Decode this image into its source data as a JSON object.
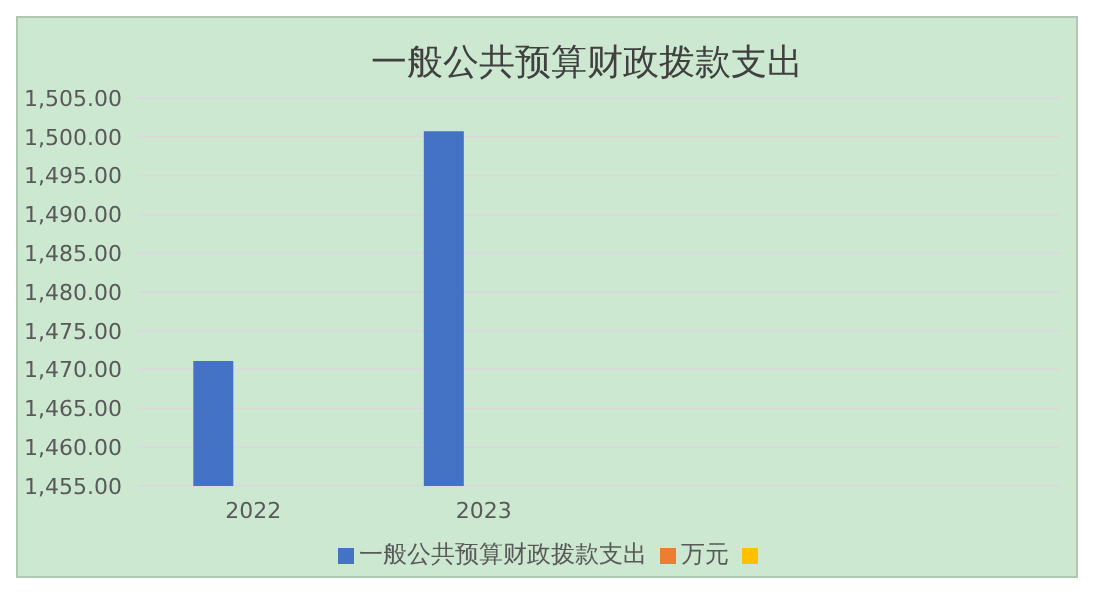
{
  "chart_data": {
    "type": "bar",
    "title": "一般公共预算财政拨款支出",
    "categories": [
      "2022",
      "2023",
      null,
      null
    ],
    "series": [
      {
        "name": "一般公共预算财政拨款支出",
        "color": "#4472c4",
        "values": [
          1471.1,
          1500.7,
          null,
          null
        ]
      },
      {
        "name": "万元",
        "color": "#ed7d31",
        "values": [
          null,
          null,
          null,
          null
        ]
      },
      {
        "color": "#ffc000",
        "values": [
          null,
          null,
          null,
          null
        ]
      }
    ],
    "ylim": [
      1455,
      1505
    ],
    "yticks": [
      {
        "value": 1455,
        "label": "1,455.00"
      },
      {
        "value": 1460,
        "label": "1,460.00"
      },
      {
        "value": 1465,
        "label": "1,465.00"
      },
      {
        "value": 1470,
        "label": "1,470.00"
      },
      {
        "value": 1475,
        "label": "1,475.00"
      },
      {
        "value": 1480,
        "label": "1,480.00"
      },
      {
        "value": 1485,
        "label": "1,485.00"
      },
      {
        "value": 1490,
        "label": "1,490.00"
      },
      {
        "value": 1495,
        "label": "1,495.00"
      },
      {
        "value": 1500,
        "label": "1,500.00"
      },
      {
        "value": 1505,
        "label": "1,505.00"
      }
    ],
    "grid": "y",
    "legend": "bottom"
  }
}
